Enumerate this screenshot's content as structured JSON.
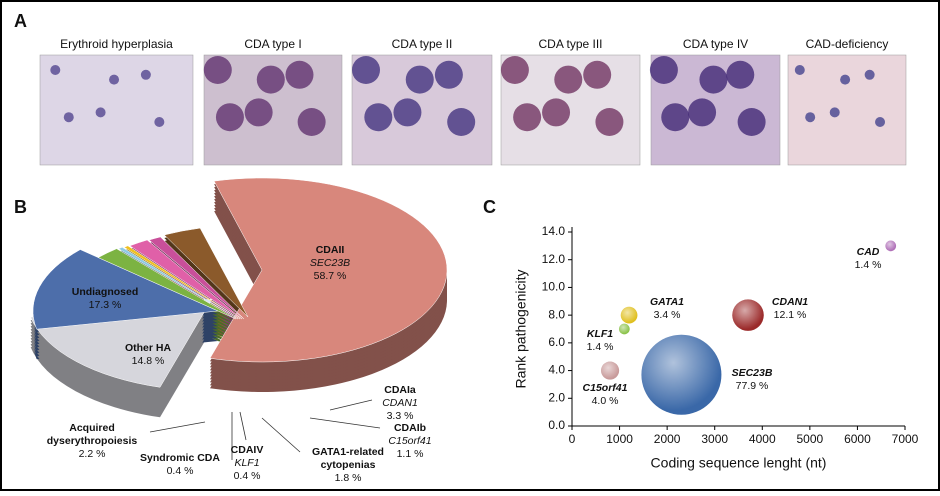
{
  "panel_a": {
    "label": "A",
    "titles": [
      "Erythroid hyperplasia",
      "CDA type I",
      "CDA type II",
      "CDA type III",
      "CDA type IV",
      "CAD-deficiency"
    ]
  },
  "chart_data": [
    {
      "type": "pie",
      "panel_label": "B",
      "labels": [
        [
          "CDAII"
        ],
        [
          "Undiagnosed"
        ],
        [
          "Other HA"
        ],
        [
          "Acquired",
          "dyserythropoiesis"
        ],
        [
          "Syndromic CDA"
        ],
        [
          "CDAIV"
        ],
        [
          "GATA1-related",
          "cytopenias"
        ],
        [
          "CDAIb"
        ],
        [
          "CDAIa"
        ]
      ],
      "genes": [
        "SEC23B",
        null,
        null,
        null,
        null,
        "KLF1",
        null,
        "C15orf41",
        "CDAN1"
      ],
      "values": [
        58.7,
        17.3,
        14.8,
        2.2,
        0.4,
        0.4,
        1.8,
        1.1,
        3.3
      ],
      "value_labels": [
        "58.7 %",
        "17.3 %",
        "14.8 %",
        "2.2 %",
        "0.4 %",
        "0.4 %",
        "1.8 %",
        "1.1 %",
        "3.3 %"
      ],
      "colors": [
        "#d8877c",
        "#d6d6dc",
        "#4d6eaa",
        "#7cb342",
        "#8ecae6",
        "#f0c020",
        "#e060a8",
        "#c94f9a",
        "#8b5a2b"
      ]
    },
    {
      "type": "scatter",
      "panel_label": "C",
      "x_label": "Coding sequence lenght (nt)",
      "y_label": "Rank pathogenicity",
      "xlim": [
        0,
        7000
      ],
      "xticks": [
        0,
        1000,
        2000,
        3000,
        4000,
        5000,
        6000,
        7000
      ],
      "ylim": [
        0,
        14
      ],
      "yticks": [
        {
          "value": 0,
          "label": "0.0"
        },
        {
          "value": 2,
          "label": "2.0"
        },
        {
          "value": 4,
          "label": "4.0"
        },
        {
          "value": 6,
          "label": "6.0"
        },
        {
          "value": 8,
          "label": "8.0"
        },
        {
          "value": 10,
          "label": "10.0"
        },
        {
          "value": 12,
          "label": "12.0"
        },
        {
          "value": 14,
          "label": "14.0"
        }
      ],
      "names": [
        "CAD",
        "CDAN1",
        "GATA1",
        "KLF1",
        "C15orf41",
        "SEC23B"
      ],
      "x": [
        6700,
        3700,
        1200,
        1100,
        800,
        2300
      ],
      "values": [
        13.0,
        8.0,
        8.0,
        7.0,
        4.0,
        3.7
      ],
      "sizes": [
        1.4,
        12.1,
        3.4,
        1.4,
        4.0,
        77.9
      ],
      "size_labels": [
        "1.4 %",
        "12.1 %",
        "3.4 %",
        "1.4 %",
        "4.0 %",
        "77.9 %"
      ],
      "colors": [
        "#b070b8",
        "#9b2a2a",
        "#e0c020",
        "#8bc34a",
        "#c89a9a",
        "#3a68a8"
      ]
    }
  ]
}
